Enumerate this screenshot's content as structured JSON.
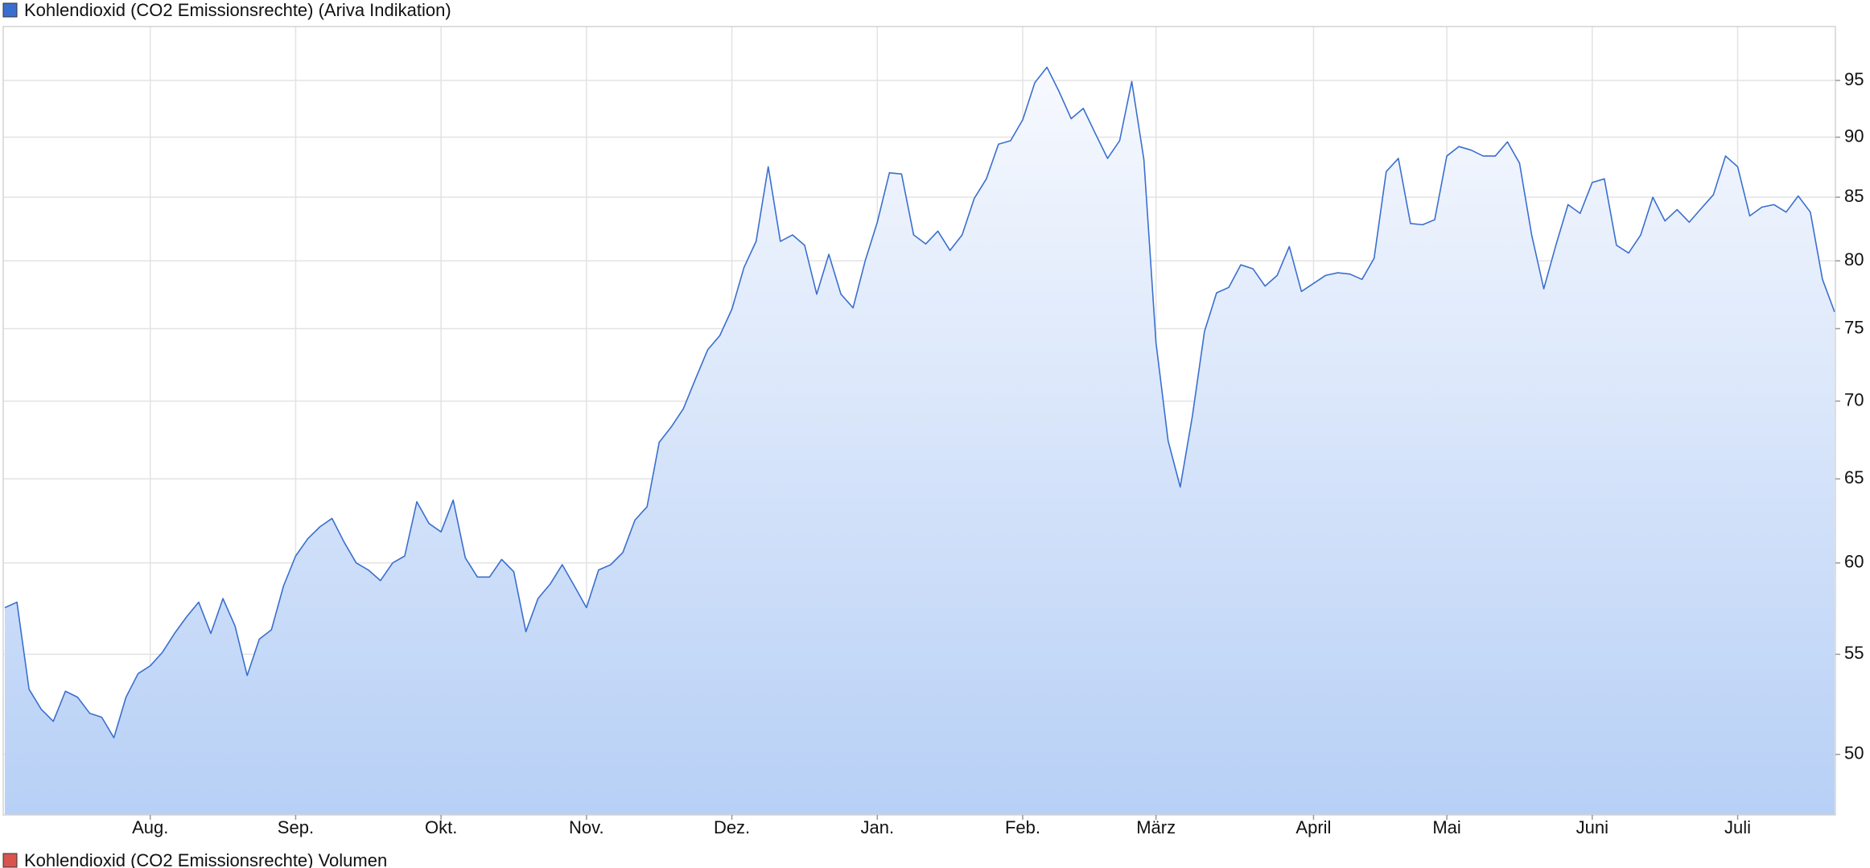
{
  "chart_data": {
    "type": "area",
    "log_scale": true,
    "grid": true,
    "categories": [
      null,
      null,
      null,
      null,
      null,
      null,
      null,
      null,
      null,
      null,
      null,
      null,
      "Aug.",
      null,
      null,
      null,
      null,
      null,
      null,
      null,
      null,
      null,
      null,
      null,
      "Sep.",
      null,
      null,
      null,
      null,
      null,
      null,
      null,
      null,
      null,
      null,
      null,
      "Okt.",
      null,
      null,
      null,
      null,
      null,
      null,
      null,
      null,
      null,
      null,
      null,
      "Nov.",
      null,
      null,
      null,
      null,
      null,
      null,
      null,
      null,
      null,
      null,
      null,
      "Dez.",
      null,
      null,
      null,
      null,
      null,
      null,
      null,
      null,
      null,
      null,
      null,
      "Jan.",
      null,
      null,
      null,
      null,
      null,
      null,
      null,
      null,
      null,
      null,
      null,
      "Feb.",
      null,
      null,
      null,
      null,
      null,
      null,
      null,
      null,
      null,
      null,
      "März",
      null,
      null,
      null,
      null,
      null,
      null,
      null,
      null,
      null,
      null,
      null,
      null,
      "April",
      null,
      null,
      null,
      null,
      null,
      null,
      null,
      null,
      null,
      null,
      "Mai",
      null,
      null,
      null,
      null,
      null,
      null,
      null,
      null,
      null,
      null,
      null,
      "Juni",
      null,
      null,
      null,
      null,
      null,
      null,
      null,
      null,
      null,
      null,
      null,
      "Juli",
      null,
      null,
      null,
      null,
      null,
      null,
      null,
      null
    ],
    "series": [
      {
        "name": "Kohlendioxid (CO2 Emissionsrechte) (Ariva Indikation)",
        "color": "#3a6fcf",
        "values": [
          57.5,
          57.8,
          53.2,
          52.2,
          51.6,
          53.1,
          52.8,
          52.0,
          51.8,
          50.8,
          52.8,
          54.0,
          54.4,
          55.1,
          56.1,
          57.0,
          57.8,
          56.1,
          58.0,
          56.5,
          53.9,
          55.8,
          56.3,
          58.7,
          60.4,
          61.4,
          62.1,
          62.6,
          61.2,
          60.0,
          59.6,
          59.0,
          60.0,
          60.4,
          63.6,
          62.3,
          61.8,
          63.7,
          60.3,
          59.2,
          59.2,
          60.2,
          59.5,
          56.2,
          58.0,
          58.8,
          59.9,
          58.7,
          57.5,
          59.6,
          59.9,
          60.6,
          62.5,
          63.3,
          67.3,
          68.3,
          69.5,
          71.5,
          73.5,
          74.5,
          76.4,
          79.5,
          81.5,
          87.5,
          81.5,
          82.0,
          81.2,
          77.5,
          80.5,
          77.5,
          76.5,
          80.0,
          83.0,
          87.0,
          86.9,
          82.0,
          81.3,
          82.3,
          80.8,
          82.0,
          84.9,
          86.5,
          89.4,
          89.7,
          91.5,
          94.8,
          96.2,
          94.0,
          91.6,
          92.5,
          90.3,
          88.2,
          89.7,
          94.9,
          88.1,
          74.0,
          67.4,
          64.5,
          69.0,
          74.8,
          77.6,
          78.0,
          79.7,
          79.4,
          78.1,
          78.9,
          81.1,
          77.7,
          78.3,
          78.9,
          79.1,
          79.0,
          78.6,
          80.2,
          87.1,
          88.2,
          82.9,
          82.8,
          83.2,
          88.4,
          89.2,
          88.9,
          88.4,
          88.4,
          89.6,
          87.8,
          82.0,
          77.9,
          81.2,
          84.4,
          83.7,
          86.2,
          86.5,
          81.2,
          80.6,
          82.0,
          85.0,
          83.1,
          84.0,
          83.0,
          84.1,
          85.2,
          88.4,
          87.5,
          83.5,
          84.2,
          84.4,
          83.8,
          85.1,
          83.8,
          78.6,
          76.2
        ]
      }
    ],
    "volume_legend": {
      "name": "Kohlendioxid (CO2 Emissionsrechte) Volumen",
      "color": "#d9534f"
    },
    "ylim": [
      47.2,
      100
    ],
    "yticks": [
      50,
      55,
      60,
      65,
      70,
      75,
      80,
      85,
      90,
      95
    ]
  }
}
